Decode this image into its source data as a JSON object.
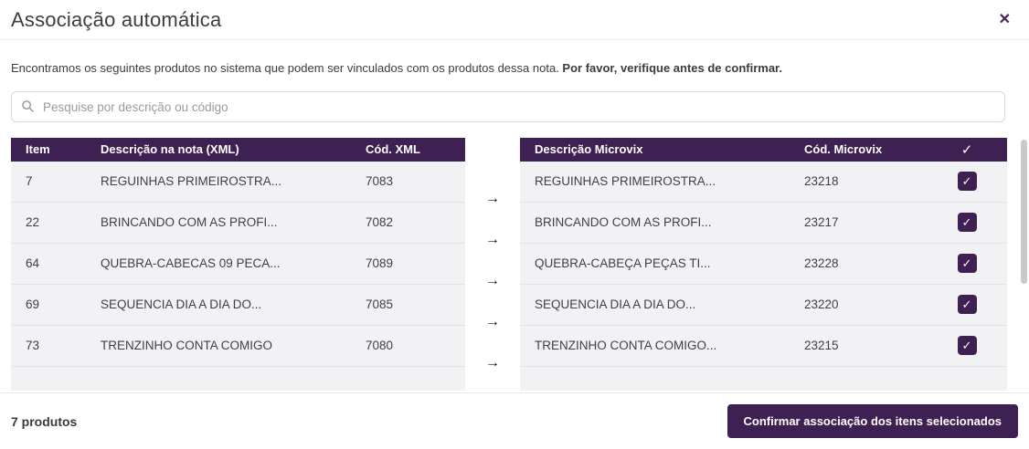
{
  "modal": {
    "title": "Associação automática",
    "close_icon": "✕",
    "description": "Encontramos os seguintes produtos no sistema que podem ser vinculados com os produtos dessa nota.",
    "description_bold": "Por favor, verifique antes de confirmar.",
    "search": {
      "placeholder": "Pesquise por descrição ou código"
    },
    "left_table": {
      "headers": [
        "Item",
        "Descrição na nota (XML)",
        "Cód. XML"
      ]
    },
    "right_table": {
      "headers": [
        "Descrição Microvix",
        "Cód. Microvix"
      ]
    },
    "select_all_icon": "✓",
    "arrow_icon": "→",
    "check_icon": "✓",
    "rows": [
      {
        "item": "7",
        "xml_desc": "REGUINHAS PRIMEIROSTRA...",
        "xml_code": "7083",
        "mv_desc": "REGUINHAS PRIMEIROSTRA...",
        "mv_code": "23218",
        "selected": true
      },
      {
        "item": "22",
        "xml_desc": "BRINCANDO COM AS PROFI...",
        "xml_code": "7082",
        "mv_desc": "BRINCANDO COM AS PROFI...",
        "mv_code": "23217",
        "selected": true
      },
      {
        "item": "64",
        "xml_desc": "QUEBRA-CABECAS 09 PECA...",
        "xml_code": "7089",
        "mv_desc": "QUEBRA-CABEÇA PEÇAS TI...",
        "mv_code": "23228",
        "selected": true
      },
      {
        "item": "69",
        "xml_desc": "SEQUENCIA DIA A DIA DO...",
        "xml_code": "7085",
        "mv_desc": "SEQUENCIA DIA A DIA DO...",
        "mv_code": "23220",
        "selected": true
      },
      {
        "item": "73",
        "xml_desc": "TRENZINHO CONTA COMIGO",
        "xml_code": "7080",
        "mv_desc": "TRENZINHO CONTA COMIGO...",
        "mv_code": "23215",
        "selected": true
      }
    ],
    "footer": {
      "count_label": "7 produtos",
      "confirm_label": "Confirmar associação dos itens selecionados"
    }
  },
  "colors": {
    "accent_purple": "#3e2152",
    "row_background": "#f2f2f5",
    "row_border": "#e3e3e7",
    "scrollbar_thumb": "#c9c9cd"
  }
}
